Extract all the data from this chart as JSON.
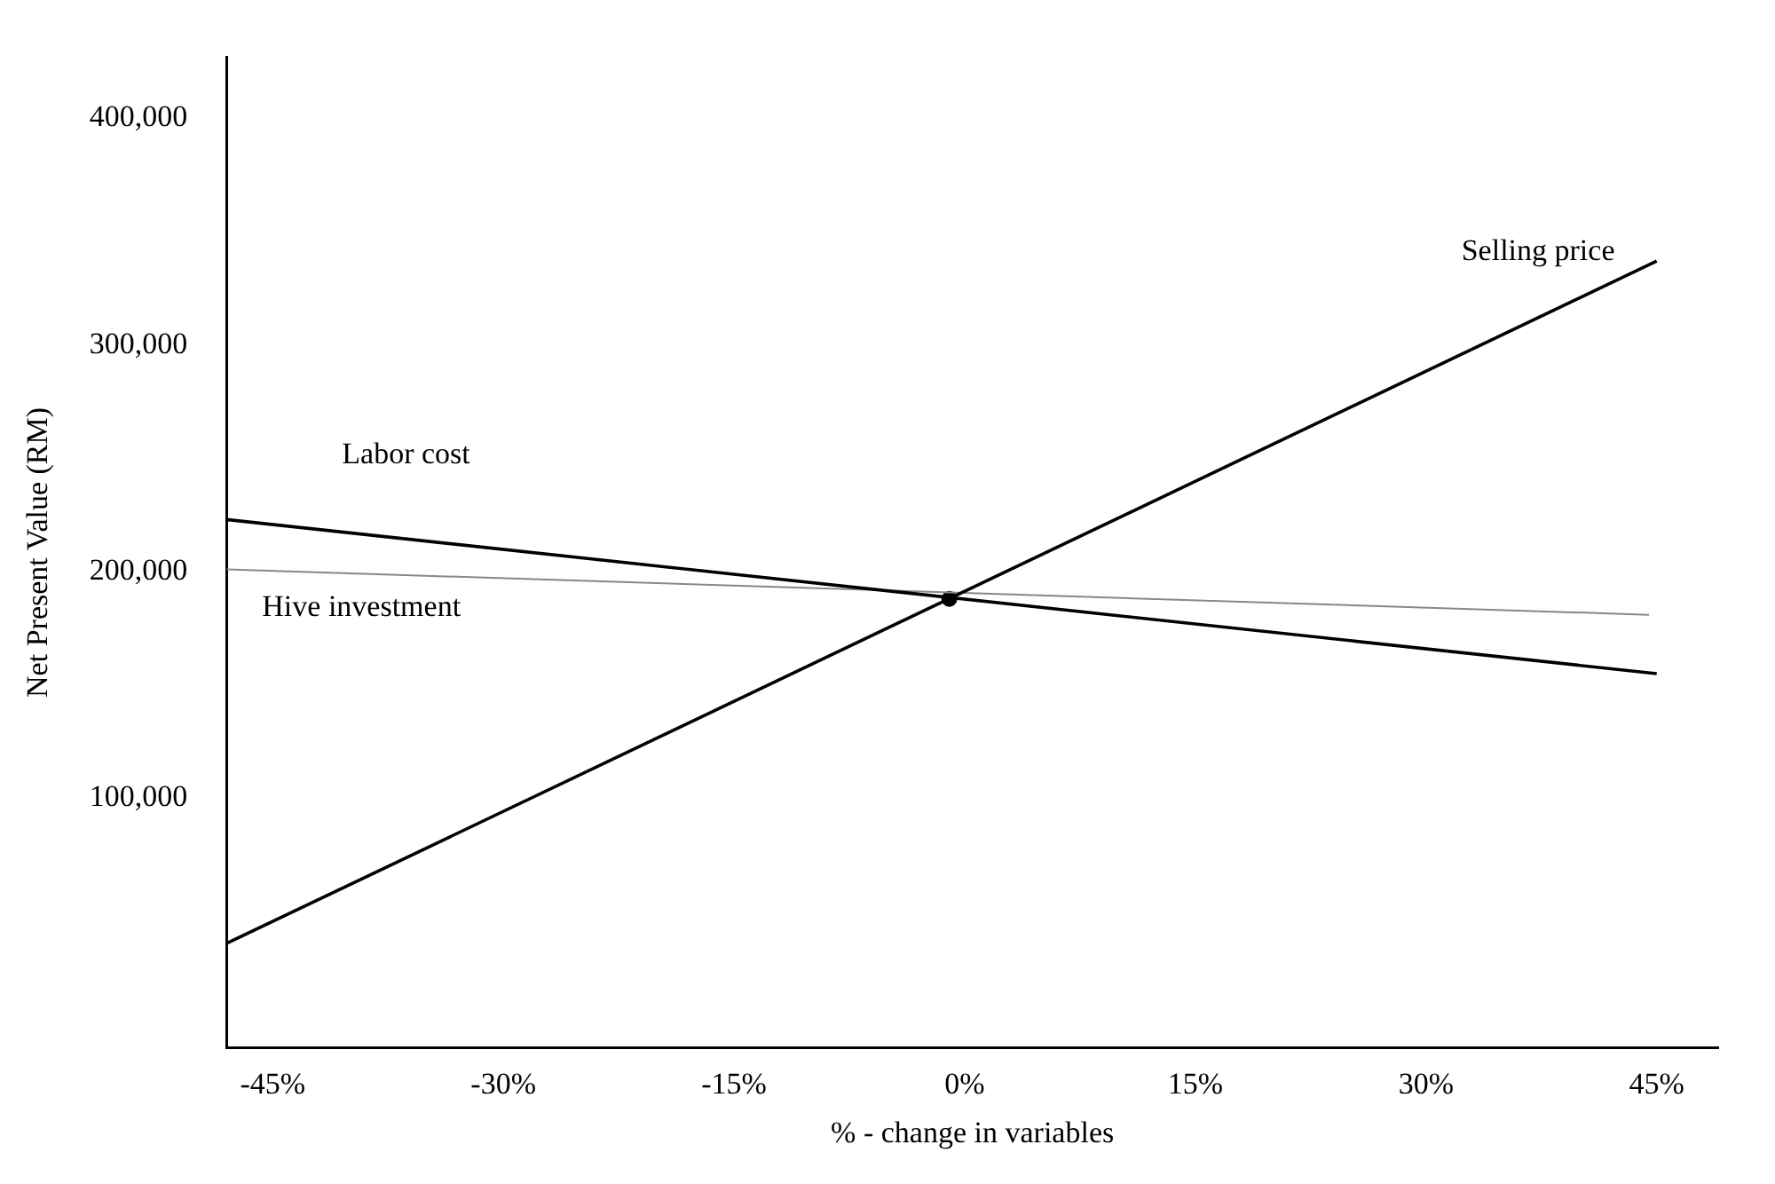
{
  "chart_data": {
    "type": "line",
    "xlabel": "% - change in variables",
    "ylabel": "Net Present Value (RM)",
    "xlim": [
      -48,
      49
    ],
    "xticks": [
      {
        "value": -45,
        "label": "-45%"
      },
      {
        "value": -30,
        "label": "-30%"
      },
      {
        "value": -15,
        "label": "-15%"
      },
      {
        "value": 0,
        "label": "0%"
      },
      {
        "value": 15,
        "label": "15%"
      },
      {
        "value": 30,
        "label": "30%"
      },
      {
        "value": 45,
        "label": "45%"
      }
    ],
    "ylim": [
      -10000,
      427000
    ],
    "yticks": [
      {
        "value": 100000,
        "label": "100,000"
      },
      {
        "value": 200000,
        "label": "200,000"
      },
      {
        "value": 300000,
        "label": "300,000"
      },
      {
        "value": 400000,
        "label": "400,000"
      }
    ],
    "grid": false,
    "legend": false,
    "series": [
      {
        "name": "Selling price",
        "color": "#000000",
        "x": [
          -48,
          45
        ],
        "values": [
          36000,
          337000
        ]
      },
      {
        "name": "Labor cost",
        "color": "#000000",
        "x": [
          -48,
          45
        ],
        "values": [
          223000,
          155000
        ]
      },
      {
        "name": "Hive investment",
        "color": "#888888",
        "x": [
          -48,
          44.5
        ],
        "values": [
          201000,
          181000
        ]
      },
      {
        "type": "scatter",
        "color": "#000000",
        "x": [
          -1
        ],
        "values": [
          188000
        ]
      }
    ]
  }
}
